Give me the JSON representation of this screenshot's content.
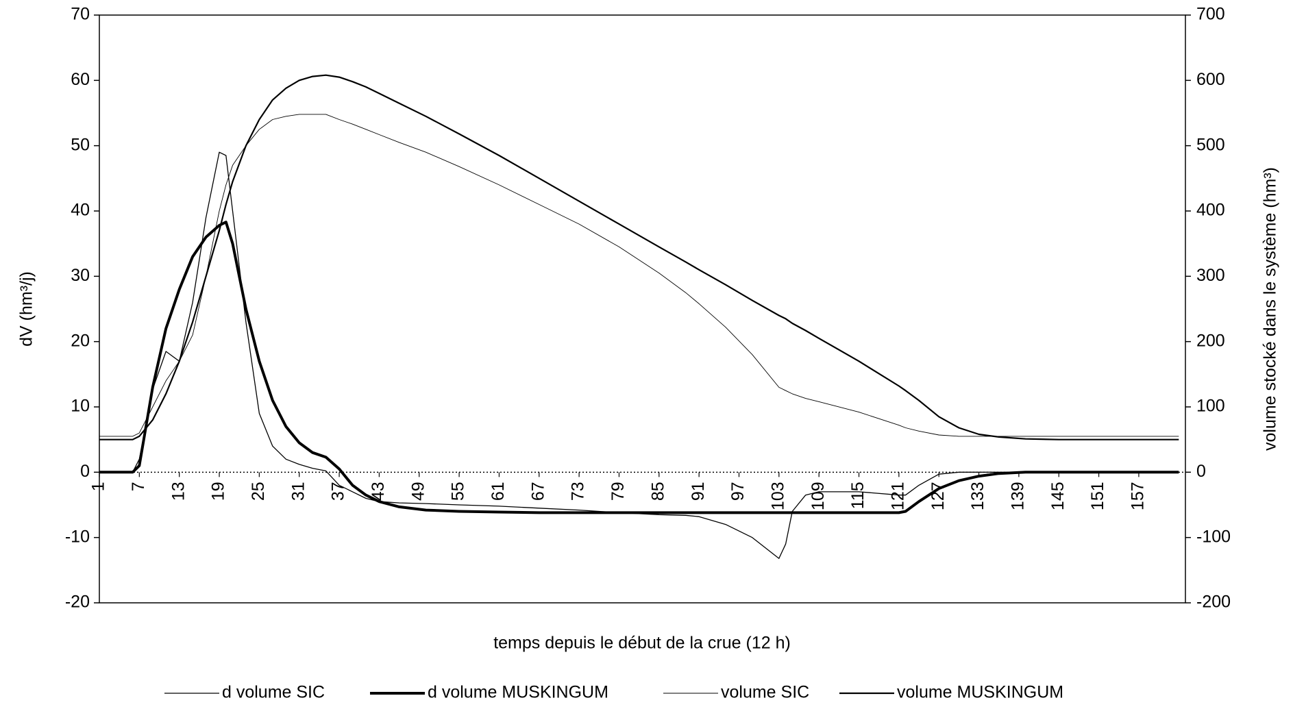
{
  "chart_data": {
    "type": "line",
    "y_label": "dV (hm³/j)",
    "y2_label": "volume stocké dans le système (hm³)",
    "x_label": "temps depuis le début de la crue (12 h)",
    "x": [
      1,
      4,
      6,
      7,
      9,
      11,
      13,
      15,
      17,
      19,
      20,
      21,
      23,
      25,
      27,
      29,
      31,
      33,
      35,
      37,
      39,
      41,
      43,
      46,
      50,
      55,
      61,
      67,
      73,
      79,
      85,
      89,
      91,
      95,
      99,
      103,
      104,
      105,
      107,
      109,
      115,
      121,
      122,
      124,
      127,
      130,
      133,
      136,
      140,
      145,
      151,
      157,
      163
    ],
    "xlim": [
      1,
      164
    ],
    "xticks": [
      1,
      7,
      13,
      19,
      25,
      31,
      37,
      43,
      49,
      55,
      61,
      67,
      73,
      79,
      85,
      91,
      97,
      103,
      109,
      115,
      121,
      127,
      133,
      139,
      145,
      151,
      157
    ],
    "ylim": [
      -20,
      70
    ],
    "yticks": [
      -20,
      -10,
      0,
      10,
      20,
      30,
      40,
      50,
      60,
      70
    ],
    "y2lim": [
      -200,
      700
    ],
    "y2ticks": [
      -200,
      -100,
      0,
      100,
      200,
      300,
      400,
      500,
      600,
      700
    ],
    "legend": "bottom",
    "series": [
      {
        "name": "d volume SIC",
        "color": "#000000",
        "line_width": 1.3,
        "axis": "y",
        "values": [
          0,
          0,
          0,
          2,
          12.7,
          18.5,
          17,
          26,
          39,
          49,
          48.5,
          40,
          23,
          9,
          4,
          2,
          1.2,
          0.6,
          0.2,
          -2,
          -3,
          -4,
          -4.5,
          -4.7,
          -4.8,
          -5,
          -5.2,
          -5.5,
          -5.8,
          -6.2,
          -6.5,
          -6.6,
          -6.8,
          -8,
          -10,
          -13.2,
          -11,
          -6,
          -3.5,
          -3,
          -3,
          -3.5,
          -3.5,
          -2,
          -0.3,
          0,
          0,
          0,
          0,
          0,
          0,
          0,
          0
        ]
      },
      {
        "name": "d volume MUSKINGUM",
        "color": "#000000",
        "line_width": 4,
        "axis": "y",
        "values": [
          0,
          0,
          0,
          1,
          13,
          22,
          28,
          33,
          36,
          37.8,
          38.3,
          35,
          25,
          17,
          11,
          7,
          4.5,
          3,
          2.3,
          0.5,
          -2,
          -3.5,
          -4.5,
          -5.3,
          -5.8,
          -6,
          -6.1,
          -6.2,
          -6.2,
          -6.2,
          -6.2,
          -6.2,
          -6.2,
          -6.2,
          -6.2,
          -6.2,
          -6.2,
          -6.2,
          -6.2,
          -6.2,
          -6.2,
          -6.2,
          -6,
          -4.5,
          -2.5,
          -1.3,
          -0.6,
          -0.2,
          0,
          0,
          0,
          0,
          0
        ]
      },
      {
        "name": "volume SIC",
        "color": "#000000",
        "line_width": 0.9,
        "axis": "y2",
        "values": [
          55,
          55,
          55,
          60,
          100,
          140,
          170,
          210,
          300,
          400,
          440,
          470,
          500,
          525,
          540,
          545,
          548,
          548,
          548,
          540,
          533,
          525,
          517,
          505,
          490,
          468,
          440,
          410,
          380,
          345,
          305,
          275,
          258,
          222,
          180,
          130,
          125,
          120,
          113,
          108,
          92,
          72,
          68,
          63,
          57,
          55,
          55,
          55,
          55,
          55,
          55,
          55,
          55
        ]
      },
      {
        "name": "volume MUSKINGUM",
        "color": "#000000",
        "line_width": 2.2,
        "axis": "y2",
        "values": [
          50,
          50,
          50,
          55,
          80,
          120,
          170,
          230,
          300,
          370,
          410,
          445,
          500,
          540,
          570,
          588,
          600,
          606,
          608,
          605,
          598,
          590,
          580,
          565,
          545,
          518,
          485,
          450,
          415,
          380,
          345,
          322,
          310,
          287,
          263,
          240,
          235,
          228,
          217,
          205,
          170,
          132,
          125,
          110,
          85,
          68,
          58,
          54,
          51,
          50,
          50,
          50,
          50
        ]
      }
    ]
  }
}
